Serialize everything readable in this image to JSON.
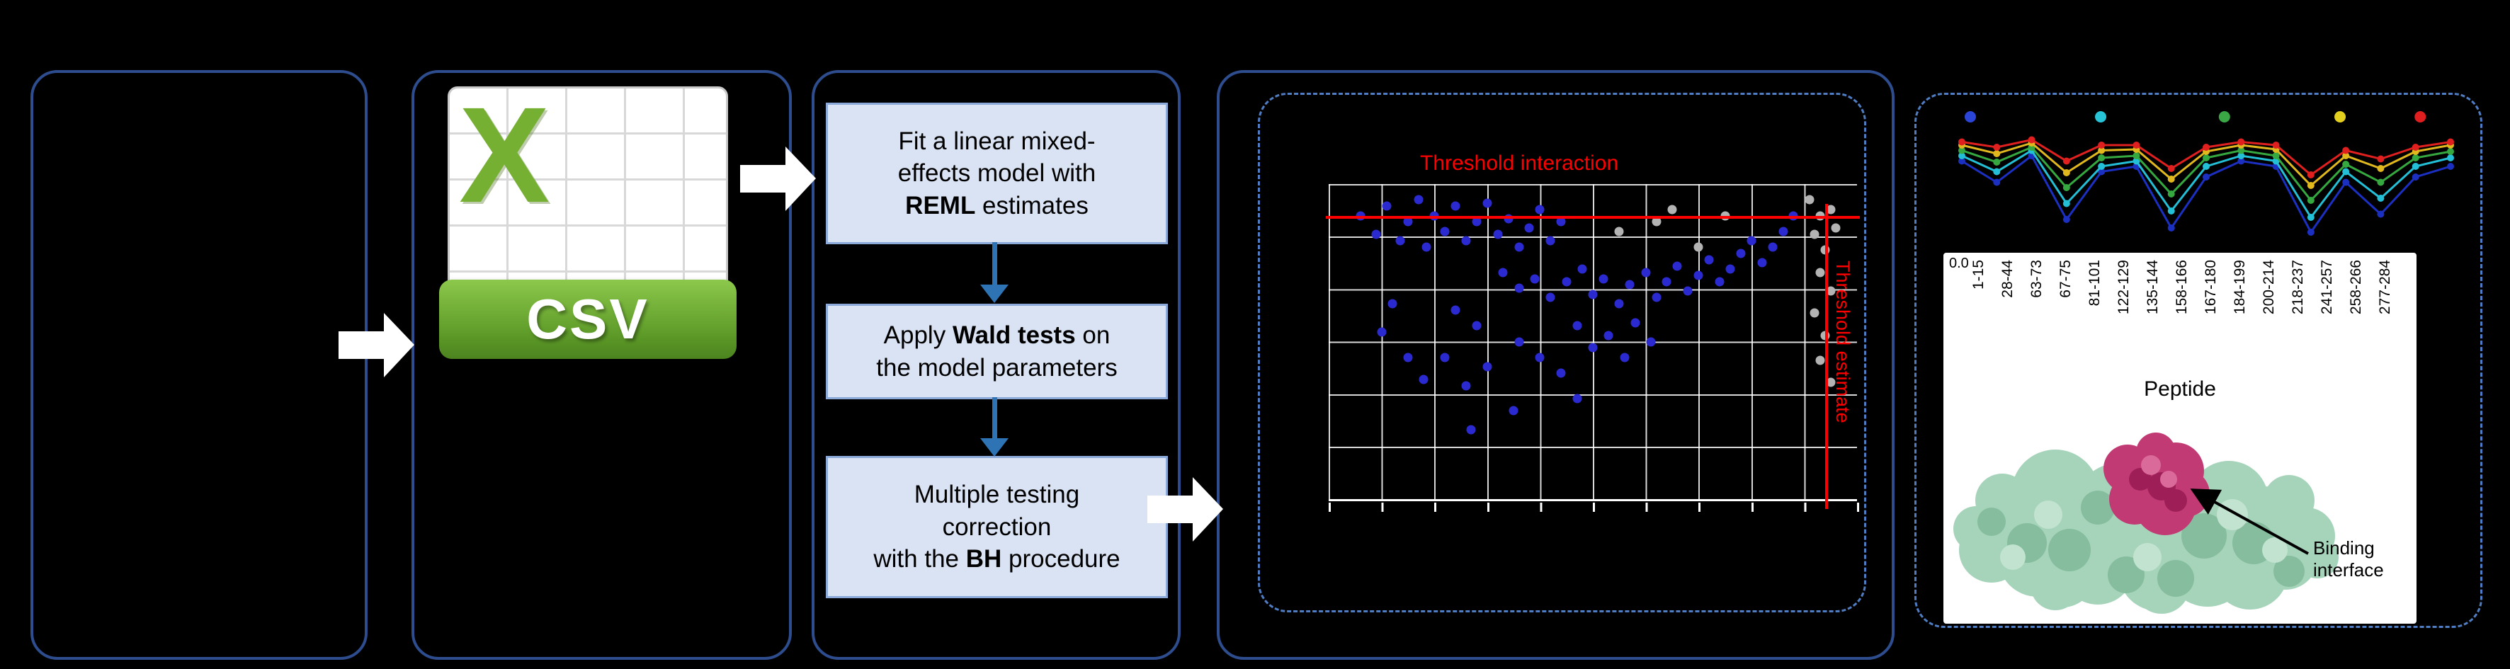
{
  "figure": {
    "background": "#000000",
    "panel_border_color": "#2e4d8e",
    "dashed_border_color": "#4f7dc4",
    "step_box_fill": "#dae3f3",
    "threshold_color": "#fe0000"
  },
  "csv": {
    "x_label": "X",
    "banner": "CSV"
  },
  "steps": {
    "boxes": [
      {
        "lines": [
          [
            {
              "t": "Fit a linear mixed-"
            }
          ],
          [
            {
              "t": "effects model with"
            }
          ],
          [
            {
              "t": "REML",
              "b": true
            },
            {
              "t": " estimates"
            }
          ]
        ]
      },
      {
        "lines": [
          [
            {
              "t": "Apply "
            },
            {
              "t": "Wald tests",
              "b": true
            },
            {
              "t": " on"
            }
          ],
          [
            {
              "t": "the model parameters"
            }
          ]
        ]
      },
      {
        "lines": [
          [
            {
              "t": "Multiple testing"
            }
          ],
          [
            {
              "t": "correction"
            }
          ],
          [
            {
              "t": "with the "
            },
            {
              "t": "BH",
              "b": true
            },
            {
              "t": " procedure"
            }
          ]
        ]
      }
    ]
  },
  "structure": {
    "binding_annotation_line1": "Binding",
    "binding_annotation_line2": "interface"
  },
  "chart_data": [
    {
      "id": "interaction-scatter",
      "type": "scatter",
      "annotations": {
        "top": "Threshold interaction",
        "right": "Threshold estimate"
      },
      "grid": true,
      "threshold": {
        "horizontal_frac_from_top": 0.1,
        "vertical_frac_from_left": 0.94
      },
      "series": [
        {
          "name": "interaction-points",
          "color": "#2a2ad0",
          "points": [
            [
              0.06,
              0.1
            ],
            [
              0.09,
              0.16
            ],
            [
              0.11,
              0.07
            ],
            [
              0.135,
              0.18
            ],
            [
              0.15,
              0.12
            ],
            [
              0.17,
              0.05
            ],
            [
              0.185,
              0.2
            ],
            [
              0.2,
              0.1
            ],
            [
              0.22,
              0.15
            ],
            [
              0.24,
              0.07
            ],
            [
              0.26,
              0.18
            ],
            [
              0.28,
              0.12
            ],
            [
              0.3,
              0.06
            ],
            [
              0.32,
              0.16
            ],
            [
              0.34,
              0.11
            ],
            [
              0.36,
              0.2
            ],
            [
              0.38,
              0.14
            ],
            [
              0.4,
              0.08
            ],
            [
              0.42,
              0.18
            ],
            [
              0.44,
              0.12
            ],
            [
              0.33,
              0.28
            ],
            [
              0.36,
              0.33
            ],
            [
              0.39,
              0.3
            ],
            [
              0.42,
              0.36
            ],
            [
              0.45,
              0.31
            ],
            [
              0.48,
              0.27
            ],
            [
              0.5,
              0.35
            ],
            [
              0.52,
              0.3
            ],
            [
              0.55,
              0.38
            ],
            [
              0.57,
              0.32
            ],
            [
              0.6,
              0.28
            ],
            [
              0.62,
              0.36
            ],
            [
              0.64,
              0.31
            ],
            [
              0.66,
              0.26
            ],
            [
              0.68,
              0.34
            ],
            [
              0.7,
              0.29
            ],
            [
              0.72,
              0.24
            ],
            [
              0.74,
              0.31
            ],
            [
              0.76,
              0.27
            ],
            [
              0.78,
              0.22
            ],
            [
              0.8,
              0.18
            ],
            [
              0.82,
              0.25
            ],
            [
              0.84,
              0.2
            ],
            [
              0.86,
              0.15
            ],
            [
              0.88,
              0.1
            ],
            [
              0.47,
              0.45
            ],
            [
              0.5,
              0.52
            ],
            [
              0.53,
              0.48
            ],
            [
              0.56,
              0.55
            ],
            [
              0.44,
              0.6
            ],
            [
              0.4,
              0.55
            ],
            [
              0.36,
              0.5
            ],
            [
              0.3,
              0.58
            ],
            [
              0.26,
              0.64
            ],
            [
              0.22,
              0.55
            ],
            [
              0.28,
              0.45
            ],
            [
              0.24,
              0.4
            ],
            [
              0.12,
              0.38
            ],
            [
              0.1,
              0.47
            ],
            [
              0.15,
              0.55
            ],
            [
              0.18,
              0.62
            ],
            [
              0.27,
              0.78
            ],
            [
              0.35,
              0.72
            ],
            [
              0.47,
              0.68
            ],
            [
              0.58,
              0.44
            ],
            [
              0.61,
              0.5
            ]
          ]
        },
        {
          "name": "reference-points",
          "color": "#b3b3b3",
          "points": [
            [
              0.91,
              0.05
            ],
            [
              0.93,
              0.1
            ],
            [
              0.95,
              0.08
            ],
            [
              0.92,
              0.16
            ],
            [
              0.94,
              0.21
            ],
            [
              0.96,
              0.14
            ],
            [
              0.93,
              0.28
            ],
            [
              0.95,
              0.34
            ],
            [
              0.92,
              0.41
            ],
            [
              0.94,
              0.48
            ],
            [
              0.93,
              0.56
            ],
            [
              0.95,
              0.63
            ],
            [
              0.62,
              0.12
            ],
            [
              0.65,
              0.08
            ],
            [
              0.55,
              0.15
            ],
            [
              0.7,
              0.2
            ],
            [
              0.75,
              0.1
            ]
          ]
        }
      ]
    },
    {
      "id": "peptide-uptake-lines",
      "type": "line",
      "categories": [
        "1-15",
        "28-44",
        "63-73",
        "67-75",
        "81-101",
        "122-129",
        "135-144",
        "158-166",
        "167-180",
        "184-199",
        "200-214",
        "218-237",
        "241-257",
        "258-266",
        "277-284"
      ],
      "xlabel": "Peptide",
      "first_ytick": "0.0",
      "legend_dot_colors": [
        "#2b45d6",
        "#27c4d8",
        "#3aa844",
        "#e3cf1e",
        "#df1f1f"
      ],
      "legend_dot_fx": [
        0.087,
        0.326,
        0.553,
        0.765,
        0.912
      ],
      "series": [
        {
          "name": "state-1",
          "color": "#1b2fc0",
          "values": [
            0.75,
            0.55,
            0.8,
            0.2,
            0.65,
            0.7,
            0.12,
            0.6,
            0.75,
            0.7,
            0.08,
            0.55,
            0.25,
            0.6,
            0.7
          ]
        },
        {
          "name": "state-2",
          "color": "#22bfd6",
          "values": [
            0.8,
            0.65,
            0.85,
            0.35,
            0.7,
            0.75,
            0.28,
            0.7,
            0.8,
            0.75,
            0.22,
            0.65,
            0.4,
            0.7,
            0.78
          ]
        },
        {
          "name": "state-3",
          "color": "#35a83f",
          "values": [
            0.85,
            0.74,
            0.88,
            0.5,
            0.78,
            0.8,
            0.44,
            0.78,
            0.85,
            0.8,
            0.38,
            0.72,
            0.55,
            0.78,
            0.84
          ]
        },
        {
          "name": "state-4",
          "color": "#e0b81e",
          "values": [
            0.9,
            0.82,
            0.92,
            0.64,
            0.85,
            0.86,
            0.58,
            0.84,
            0.9,
            0.86,
            0.52,
            0.8,
            0.68,
            0.84,
            0.9
          ]
        },
        {
          "name": "state-5",
          "color": "#e01f1f",
          "values": [
            0.93,
            0.88,
            0.95,
            0.75,
            0.9,
            0.9,
            0.68,
            0.88,
            0.93,
            0.9,
            0.62,
            0.85,
            0.77,
            0.88,
            0.93
          ]
        }
      ]
    }
  ]
}
